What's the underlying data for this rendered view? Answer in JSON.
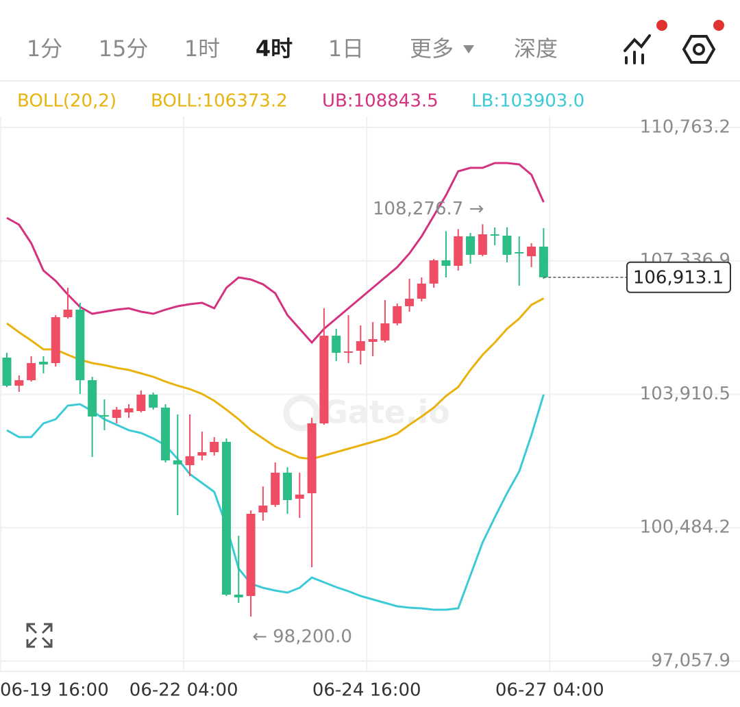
{
  "header": {
    "tabs": [
      "1分",
      "15分",
      "1时",
      "4时",
      "1日"
    ],
    "more": "更多",
    "depth": "深度"
  },
  "chart_data": {
    "type": "candlestick",
    "indicator": "BOLL(20,2)",
    "watermark": "Gate.io",
    "up_color": "#ee4d63",
    "down_color": "#2cbd86",
    "x": [
      0,
      1,
      2,
      3,
      4,
      5,
      6,
      7,
      8,
      9,
      10,
      11,
      12,
      13,
      14,
      15,
      16,
      17,
      18,
      19,
      20,
      21,
      22,
      23,
      24,
      25,
      26,
      27,
      28,
      29,
      30,
      31,
      32,
      33,
      34,
      35,
      36,
      37,
      38,
      39,
      40,
      41,
      42,
      43,
      44
    ],
    "open": [
      104851,
      104130,
      104271,
      104746,
      104711,
      105889,
      106083,
      104271,
      103374,
      103303,
      103444,
      103479,
      103901,
      103567,
      102212,
      102089,
      102335,
      102423,
      102687,
      98764,
      98729,
      100875,
      101069,
      101896,
      101227,
      101368,
      103162,
      105414,
      104975,
      105027,
      105256,
      105291,
      105731,
      106171,
      106364,
      106752,
      107350,
      107209,
      107966,
      107491,
      108018,
      107983,
      107561,
      107455,
      107702
    ],
    "high": [
      104975,
      104394,
      104887,
      104887,
      105942,
      106646,
      106258,
      104359,
      103778,
      103585,
      103655,
      104007,
      103954,
      103655,
      103391,
      103391,
      102951,
      102811,
      102775,
      100277,
      100928,
      101544,
      102160,
      102036,
      101896,
      103303,
      106118,
      105590,
      105942,
      105678,
      105766,
      106329,
      106241,
      106875,
      106910,
      107385,
      108100,
      108150,
      108054,
      108276.7,
      108194,
      108200,
      107966,
      107790,
      108177
    ],
    "low": [
      104095,
      103972,
      104236,
      104447,
      104623,
      105854,
      103919,
      102300,
      102986,
      103162,
      103303,
      103444,
      103514,
      102160,
      100805,
      101808,
      102212,
      102335,
      98729,
      98553,
      98200.0,
      100664,
      101016,
      100840,
      100734,
      99468,
      103127,
      104763,
      104711,
      104675,
      104887,
      105238,
      105678,
      106030,
      106294,
      106646,
      106910,
      107086,
      107262,
      107455,
      107737,
      107297,
      106699,
      107174,
      106875
    ],
    "close": [
      104130,
      104271,
      104711,
      104675,
      105889,
      106083,
      104271,
      103338,
      103338,
      103514,
      103549,
      103901,
      103567,
      102212,
      102107,
      102318,
      102423,
      102687,
      98764,
      98694,
      100840,
      101051,
      101896,
      101192,
      101333,
      103162,
      105414,
      104975,
      105010,
      105274,
      105326,
      105731,
      106171,
      106364,
      106752,
      107350,
      107209,
      107966,
      107491,
      108018,
      107983,
      107491,
      107526,
      107702,
      106913.1
    ],
    "series": [
      {
        "name": "BOLL:106373.2",
        "color": "#e8b20f",
        "values": [
          105731,
          105502,
          105291,
          105062,
          105062,
          104921,
          104798,
          104710,
          104657,
          104587,
          104534,
          104446,
          104358,
          104235,
          104130,
          104042,
          103918,
          103743,
          103514,
          103267,
          102986,
          102775,
          102564,
          102423,
          102282,
          102247,
          102335,
          102423,
          102511,
          102599,
          102687,
          102775,
          102898,
          103127,
          103338,
          103567,
          103866,
          104094,
          104534,
          104921,
          105238,
          105590,
          105854,
          106206,
          106373.2
        ]
      },
      {
        "name": "UB:108843.5",
        "color": "#d4317f",
        "values": [
          108440,
          108264,
          107789,
          107085,
          106821,
          106470,
          106153,
          105977,
          106030,
          106083,
          106118,
          106030,
          105977,
          106083,
          106170,
          106223,
          106258,
          106118,
          106646,
          106909,
          106857,
          106733,
          106505,
          105942,
          105590,
          105238,
          105590,
          105854,
          106118,
          106382,
          106646,
          106909,
          107173,
          107525,
          107965,
          108493,
          109021,
          109636,
          109724,
          109724,
          109848,
          109848,
          109812,
          109549,
          108843.5
        ]
      },
      {
        "name": "LB:103903.0",
        "color": "#3ccad6",
        "values": [
          102986,
          102810,
          102810,
          103162,
          103267,
          103619,
          103655,
          103479,
          103267,
          103127,
          102986,
          102916,
          102775,
          102599,
          102247,
          101860,
          101631,
          101403,
          100523,
          99432,
          99045,
          98939,
          98869,
          98816,
          98939,
          99203,
          99080,
          98957,
          98851,
          98728,
          98640,
          98552,
          98464,
          98429,
          98412,
          98376,
          98376,
          98412,
          99256,
          100101,
          100752,
          101367,
          101930,
          102863,
          103903.0
        ]
      }
    ],
    "ylim": [
      96793,
      111044
    ],
    "yticks": [
      {
        "value": 110763.2,
        "label": "110,763.2"
      },
      {
        "value": 107336.9,
        "label": "107,336.9"
      },
      {
        "value": 103910.5,
        "label": "103,910.5"
      },
      {
        "value": 100484.2,
        "label": "100,484.2"
      },
      {
        "value": 97057.9,
        "label": "97,057.9"
      }
    ],
    "xlim": [
      -0.5625,
      60.1
    ],
    "xticks": [
      {
        "value": -0.5,
        "label": "06-19 16:00"
      },
      {
        "value": 14.5,
        "label": "06-22 04:00"
      },
      {
        "value": 29.5,
        "label": "06-24 16:00"
      },
      {
        "value": 44.5,
        "label": "06-27 04:00"
      }
    ],
    "grid": true,
    "price_line": {
      "value": 106913.1,
      "label": "106,913.1"
    },
    "annotations": {
      "high": "108,276.7 →",
      "low": "← 98,200.0"
    }
  }
}
